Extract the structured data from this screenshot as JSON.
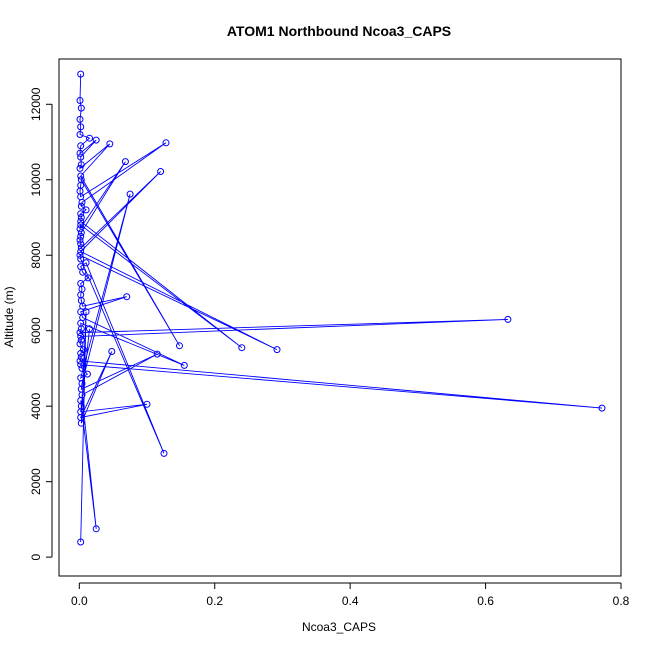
{
  "chart_data": {
    "type": "line",
    "title": "ATOM1 Northbound Ncoa3_CAPS",
    "xlabel": "Ncoa3_CAPS",
    "ylabel": "Altitude (m)",
    "xlim": [
      -0.03,
      0.8
    ],
    "ylim": [
      -500,
      13200
    ],
    "xticks": [
      0.0,
      0.2,
      0.4,
      0.6,
      0.8
    ],
    "yticks": [
      0,
      2000,
      4000,
      6000,
      8000,
      10000,
      12000
    ],
    "xtick_labels": [
      "0.0",
      "0.2",
      "0.4",
      "0.6",
      "0.8"
    ],
    "ytick_labels": [
      "0",
      "2000",
      "4000",
      "6000",
      "8000",
      "10000",
      "12000"
    ],
    "grid": false,
    "legend": "none",
    "color": "#0000ff",
    "series": [
      {
        "x": [
          0.002,
          0.001,
          0.003,
          0.001,
          0.002,
          0.001,
          0.015,
          0.002,
          0.001,
          0.025,
          0.002,
          0.003,
          0.001,
          0.045,
          0.002,
          0.148,
          0.003,
          0.002,
          0.001,
          0.002,
          0.128,
          0.004,
          0.003,
          0.01,
          0.002,
          0.003,
          0.002,
          0.24,
          0.002,
          0.001,
          0.068,
          0.003,
          0.002,
          0.001,
          0.002,
          0.003,
          0.12,
          0.002,
          0.292,
          0.001,
          0.002,
          0.125,
          0.01,
          0.002,
          0.005,
          0.013,
          0.002,
          0.004,
          0.002,
          0.003,
          0.005,
          0.07,
          0.002,
          0.005,
          0.155,
          0.002,
          0.003,
          0.001,
          0.633,
          0.002,
          0.003,
          0.001,
          0.006,
          0.002,
          0.003,
          0.001,
          0.772,
          0.002,
          0.004,
          0.012,
          0.002,
          0.075,
          0.004,
          0.003,
          0.115,
          0.004,
          0.025,
          0.002,
          0.003,
          0.015,
          0.002,
          0.1,
          0.002,
          0.048,
          0.003,
          0.01,
          0.002
        ],
        "y": [
          12800,
          12100,
          11900,
          11600,
          11400,
          11200,
          11100,
          10900,
          10700,
          11050,
          10600,
          10400,
          10300,
          10950,
          10100,
          5600,
          10000,
          9850,
          9700,
          9550,
          10980,
          9400,
          9300,
          9200,
          9100,
          9000,
          8900,
          5550,
          8800,
          8700,
          10480,
          8600,
          8500,
          8400,
          8300,
          8200,
          10220,
          8100,
          5500,
          8000,
          7900,
          2750,
          7800,
          7700,
          7550,
          7400,
          7250,
          7100,
          6950,
          6800,
          6650,
          6900,
          6500,
          6350,
          5080,
          6200,
          6050,
          5950,
          6300,
          5850,
          5750,
          5650,
          5500,
          5400,
          5300,
          5200,
          3950,
          5100,
          5000,
          4850,
          4750,
          9620,
          4600,
          4450,
          5380,
          4300,
          750,
          4150,
          4000,
          6050,
          3850,
          4050,
          3700,
          5450,
          3550,
          6500,
          400
        ]
      }
    ]
  }
}
